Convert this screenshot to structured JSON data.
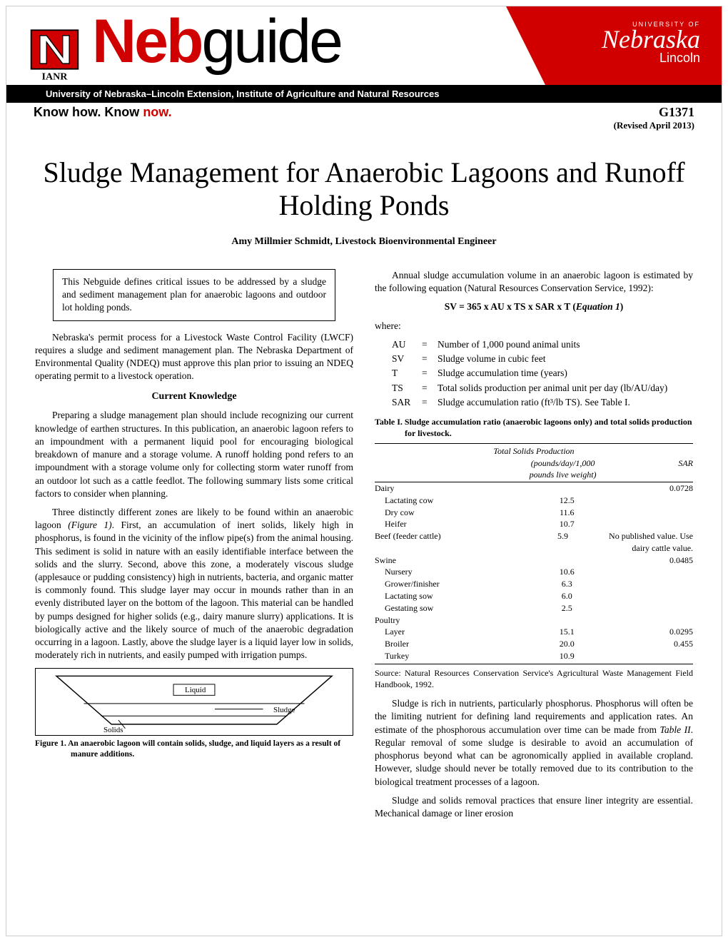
{
  "header": {
    "brand_neb": "Neb",
    "brand_guide": "guide",
    "ianr": "IANR",
    "department": "University of Nebraska–Lincoln Extension, Institute of Agriculture and Natural Resources",
    "know_how": "Know how. Know ",
    "know_now": "now.",
    "unl_top": "UNIVERSITY OF",
    "unl_mid": "Nebraska",
    "unl_bot": "Lincoln",
    "doc_id": "G1371",
    "revised": "(Revised April 2013)"
  },
  "title": "Sludge Management for Anaerobic Lagoons and Runoff Holding Ponds",
  "author": "Amy Millmier Schmidt, Livestock Bioenvironmental Engineer",
  "abstract": "This Nebguide defines critical issues to be addressed by a sludge and sediment management plan for anaerobic lagoons and outdoor lot holding ponds.",
  "left": {
    "p1": "Nebraska's permit process for a Livestock Waste Control Facility (LWCF) requires a sludge and sediment management plan. The Nebraska Department of Environmental Quality (NDEQ) must approve this plan prior to issuing an NDEQ operating permit to a livestock operation.",
    "h2": "Current Knowledge",
    "p2": "Preparing a sludge management plan should include recognizing our current knowledge of earthen structures. In this publication, an anaerobic lagoon refers to an impoundment with a permanent liquid pool for encouraging biological breakdown of manure and a storage volume. A runoff holding pond refers to an impoundment with a storage volume only for collecting storm water runoff from an outdoor lot such as a cattle feedlot. The following summary lists some critical factors to consider when planning.",
    "p3a": "Three distinctly different zones are likely to be found within an anaerobic lagoon ",
    "p3fig": "(Figure 1)",
    "p3b": ". First, an accumulation of inert solids, likely high in phosphorus, is found in the vicinity of the inflow pipe(s) from the animal housing. This sediment is solid in nature with an easily identifiable interface between the solids and the slurry. Second, above this zone, a moderately viscous sludge (applesauce or pudding consistency) high in nutrients, bacteria, and organic matter is commonly found. This sludge layer may occur in mounds rather than in an evenly distributed layer on the bottom of the lagoon. This material can be handled by pumps designed for higher solids (e.g., dairy manure slurry) applications. It is biologically active and the likely source of much of the anaerobic degradation occurring in a lagoon. Lastly, above the sludge layer is a liquid layer low in solids, moderately rich in nutrients, and easily pumped with irrigation pumps.",
    "fig_liquid": "Liquid",
    "fig_sludge": "Sludge",
    "fig_solids": "Solids",
    "fig_caption": "Figure 1.  An anaerobic lagoon will contain solids, sludge, and liquid layers as a result of manure additions."
  },
  "right": {
    "p1": "Annual sludge accumulation volume in an anaerobic lagoon is estimated by the following equation (Natural Resources Conservation Service, 1992):",
    "equation": "SV = 365 x AU x TS x SAR x T (Equation 1)",
    "where": "where:",
    "vars": [
      {
        "sym": "AU",
        "desc": "Number of 1,000 pound animal units"
      },
      {
        "sym": "SV",
        "desc": "Sludge volume in cubic feet"
      },
      {
        "sym": "T",
        "desc": "Sludge accumulation time (years)"
      },
      {
        "sym": "TS",
        "desc": "Total solids production per animal unit per day (lb/AU/day)"
      },
      {
        "sym": "SAR",
        "desc": "Sludge accumulation ratio (ft³/lb TS). See Table I."
      }
    ],
    "tbl_caption": "Table I.  Sludge accumulation ratio (anaerobic lagoons only) and total solids production for livestock.",
    "tbl_head1": "Total Solids Production",
    "tbl_head_c2": "(pounds/day/1,000 pounds live weight)",
    "tbl_head_c3": "SAR",
    "rows": [
      {
        "c1": "Dairy",
        "c2": "",
        "c3": "0.0728",
        "indent": false
      },
      {
        "c1": "Lactating cow",
        "c2": "12.5",
        "c3": "",
        "indent": true
      },
      {
        "c1": "Dry cow",
        "c2": "11.6",
        "c3": "",
        "indent": true
      },
      {
        "c1": "Heifer",
        "c2": "10.7",
        "c3": "",
        "indent": true
      },
      {
        "c1": "Beef (feeder cattle)",
        "c2": "5.9",
        "c3": "No published value. Use dairy cattle value.",
        "indent": false
      },
      {
        "c1": "Swine",
        "c2": "",
        "c3": "0.0485",
        "indent": false
      },
      {
        "c1": "Nursery",
        "c2": "10.6",
        "c3": "",
        "indent": true
      },
      {
        "c1": "Grower/finisher",
        "c2": "6.3",
        "c3": "",
        "indent": true
      },
      {
        "c1": "Lactating sow",
        "c2": "6.0",
        "c3": "",
        "indent": true
      },
      {
        "c1": "Gestating sow",
        "c2": "2.5",
        "c3": "",
        "indent": true
      },
      {
        "c1": "Poultry",
        "c2": "",
        "c3": "",
        "indent": false
      },
      {
        "c1": "Layer",
        "c2": "15.1",
        "c3": "0.0295",
        "indent": true
      },
      {
        "c1": "Broiler",
        "c2": "20.0",
        "c3": "0.455",
        "indent": true
      },
      {
        "c1": "Turkey",
        "c2": "10.9",
        "c3": "",
        "indent": true
      }
    ],
    "tbl_source": "Source: Natural Resources Conservation Service's Agricultural Waste Management Field Handbook, 1992.",
    "p2a": "Sludge is rich in nutrients, particularly phosphorus. Phosphorus will often be the limiting nutrient for defining land requirements and application rates. An estimate of the phosphorous accumulation over time can be made from ",
    "p2tbl": "Table II",
    "p2b": ". Regular removal of some sludge is desirable to avoid an accumulation of phosphorus beyond what can be agronomically applied in available cropland. However, sludge should never be totally removed due to its contribution to the biological treatment processes of a lagoon.",
    "p3": "Sludge and solids removal practices that ensure liner integrity are essential. Mechanical damage or liner erosion"
  },
  "colors": {
    "red": "#d00000",
    "black": "#000000",
    "white": "#ffffff"
  }
}
